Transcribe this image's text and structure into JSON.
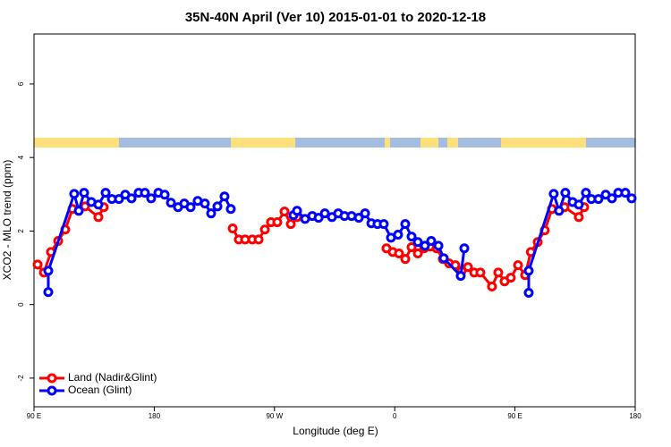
{
  "chart_data": {
    "type": "line",
    "title": "35N-40N April (Ver 10)   2015-01-01 to 2020-12-18",
    "x_label": "Longitude (deg E)",
    "y_label": "XCO2 - MLO trend (ppm)",
    "xlim": [
      90,
      540
    ],
    "ylim": [
      -2.78,
      7.36
    ],
    "xticks": [
      {
        "value": 90,
        "label": "90 E"
      },
      180,
      {
        "value": 270,
        "label": "90 W"
      },
      {
        "value": 360,
        "label": "0"
      },
      {
        "value": 450,
        "label": "90 E"
      },
      {
        "value": 540,
        "label": "180"
      }
    ],
    "yticks": [
      -2,
      0,
      2,
      4,
      6
    ],
    "legend": "bottom-left",
    "series": [
      {
        "name": "Land (Nadir&Glint)",
        "color": "#ff0000",
        "x": [
          92.7,
          97.4,
          102.7,
          108.1,
          113.4,
          118.8,
          128.2,
          138.2,
          142.2,
          null,
          238.7,
          243.3,
          248.0,
          253.4,
          258.1,
          262.8,
          267.4,
          272.1,
          277.5,
          282.2,
          286.9,
          null,
          353.8,
          358.5,
          363.2,
          367.9,
          372.6,
          377.3,
          382.0,
          386.6,
          391.3,
          396.0,
          400.7,
          405.4,
          410.1,
          414.8,
          419.5,
          424.1,
          432.8,
          437.5,
          442.2,
          446.9,
          452.3,
          457.6,
          461.9,
          467.0,
          472.3,
          477.7,
          487.1,
          497.8,
          501.8
        ],
        "values": [
          1.09,
          0.87,
          1.43,
          1.73,
          2.04,
          2.6,
          2.67,
          2.38,
          2.65,
          null,
          2.07,
          1.77,
          1.77,
          1.77,
          1.77,
          2.04,
          2.24,
          2.24,
          2.53,
          2.19,
          2.38,
          null,
          1.53,
          1.43,
          1.39,
          1.24,
          1.56,
          1.39,
          1.53,
          1.58,
          1.53,
          1.24,
          1.12,
          1.07,
          0.92,
          1.02,
          0.87,
          0.87,
          0.49,
          0.87,
          0.63,
          0.73,
          1.07,
          0.8,
          1.43,
          1.7,
          2.02,
          2.6,
          2.65,
          2.38,
          2.65
        ]
      },
      {
        "name": "Ocean (Glint)",
        "color": "#0000ff",
        "x": [
          100.7,
          100.7,
          120.1,
          123.5,
          127.5,
          132.9,
          138.2,
          143.6,
          148.3,
          153.6,
          158.3,
          163.0,
          168.3,
          173.0,
          177.7,
          183.1,
          187.8,
          192.5,
          197.8,
          202.5,
          207.2,
          212.5,
          217.9,
          222.6,
          227.3,
          232.6,
          237.3,
          null,
          284.2,
          286.9,
          292.9,
          298.3,
          303.0,
          307.7,
          313.0,
          317.7,
          322.4,
          327.7,
          333.1,
          337.8,
          342.5,
          347.1,
          351.8,
          357.2,
          362.5,
          367.9,
          372.6,
          377.3,
          382.6,
          387.3,
          392.7,
          396.7,
          409.4,
          412.1,
          null,
          460.3,
          460.3,
          479.0,
          483.0,
          487.7,
          493.1,
          497.8,
          503.1,
          507.2,
          512.5,
          517.9,
          522.6,
          527.3,
          532.6,
          537.3
        ],
        "values": [
          0.34,
          0.92,
          3.01,
          2.55,
          3.04,
          2.79,
          2.72,
          3.04,
          2.87,
          2.87,
          2.99,
          2.89,
          3.04,
          3.04,
          2.89,
          3.04,
          2.99,
          2.77,
          2.65,
          2.75,
          2.65,
          2.82,
          2.75,
          2.48,
          2.67,
          2.94,
          2.6,
          null,
          2.43,
          2.55,
          2.33,
          2.41,
          2.36,
          2.48,
          2.38,
          2.48,
          2.41,
          2.41,
          2.36,
          2.48,
          2.21,
          2.19,
          2.19,
          1.82,
          1.9,
          2.19,
          1.85,
          1.7,
          1.6,
          1.73,
          1.6,
          1.26,
          0.78,
          1.53,
          null,
          0.32,
          0.92,
          3.01,
          2.55,
          3.04,
          2.79,
          2.72,
          3.04,
          2.87,
          2.87,
          2.99,
          2.89,
          3.04,
          3.04,
          2.89
        ]
      }
    ]
  }
}
